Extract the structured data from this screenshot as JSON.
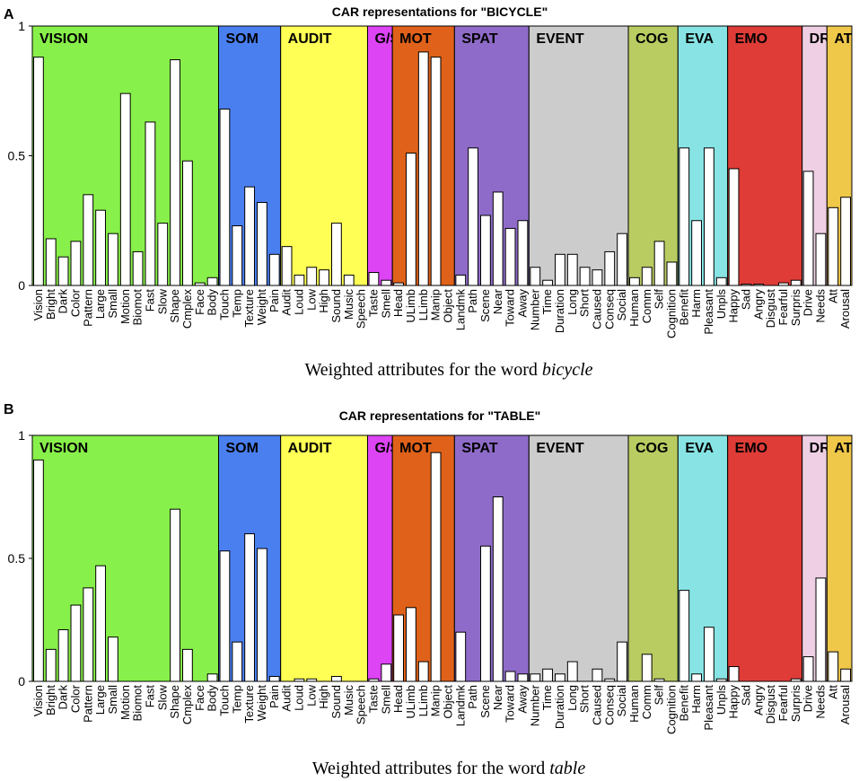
{
  "panel_letters": [
    "A",
    "B"
  ],
  "colors": {
    "VISION": "#88f04a",
    "SOM": "#4a7ff0",
    "AUDIT": "#ffff55",
    "G/S": "#dd44f4",
    "MOT": "#e0621a",
    "SPAT": "#8f6bc9",
    "EVENT": "#cccccc",
    "COG": "#b9cc62",
    "EVA": "#88e4e4",
    "EMO": "#df3c37",
    "DR": "#efcfe3",
    "AT": "#efc84a",
    "bar": "#ffffff"
  },
  "chart_data": [
    {
      "type": "bar",
      "title": "CAR representations for \"BICYCLE\"",
      "xlabel_prefix": "Weighted attributes for the word ",
      "xlabel_word": "bicycle",
      "ylabel": "",
      "ylim": [
        0,
        1
      ],
      "yticks": [
        "0",
        "0.5",
        "1"
      ],
      "domains": [
        {
          "label": "VISION",
          "count": 15
        },
        {
          "label": "SOM",
          "count": 5
        },
        {
          "label": "AUDIT",
          "count": 7
        },
        {
          "label": "G/S",
          "count": 2
        },
        {
          "label": "MOT",
          "count": 5
        },
        {
          "label": "SPAT",
          "count": 6
        },
        {
          "label": "EVENT",
          "count": 8
        },
        {
          "label": "COG",
          "count": 4
        },
        {
          "label": "EVA",
          "count": 4
        },
        {
          "label": "EMO",
          "count": 6
        },
        {
          "label": "DR",
          "count": 2
        },
        {
          "label": "AT",
          "count": 2
        }
      ],
      "categories": [
        "Vision",
        "Bright",
        "Dark",
        "Color",
        "Pattern",
        "Large",
        "Small",
        "Motion",
        "Biomot",
        "Fast",
        "Slow",
        "Shape",
        "Cmplex",
        "Face",
        "Body",
        "Touch",
        "Temp",
        "Texture",
        "Weight",
        "Pain",
        "Audit",
        "Loud",
        "Low",
        "High",
        "Sound",
        "Music",
        "Speech",
        "Taste",
        "Smell",
        "Head",
        "ULimb",
        "LLimb",
        "Manip",
        "Object",
        "Landmk",
        "Path",
        "Scene",
        "Near",
        "Toward",
        "Away",
        "Number",
        "Time",
        "Duration",
        "Long",
        "Short",
        "Caused",
        "Conseq",
        "Social",
        "Human",
        "Comm",
        "Self",
        "Cognition",
        "Benefit",
        "Harm",
        "Pleasant",
        "Unpls",
        "Happy",
        "Sad",
        "Angry",
        "Disgust",
        "Fearful",
        "Surpris",
        "Drive",
        "Needs",
        "Att",
        "Arousal"
      ],
      "values": [
        0.88,
        0.18,
        0.11,
        0.17,
        0.35,
        0.29,
        0.2,
        0.74,
        0.13,
        0.63,
        0.24,
        0.87,
        0.48,
        0.01,
        0.03,
        0.68,
        0.23,
        0.38,
        0.32,
        0.12,
        0.15,
        0.04,
        0.07,
        0.06,
        0.24,
        0.04,
        0.0,
        0.05,
        0.02,
        0.01,
        0.51,
        0.9,
        0.88,
        0.0,
        0.04,
        0.53,
        0.27,
        0.36,
        0.22,
        0.25,
        0.07,
        0.02,
        0.12,
        0.12,
        0.07,
        0.06,
        0.13,
        0.2,
        0.03,
        0.07,
        0.17,
        0.09,
        0.53,
        0.25,
        0.53,
        0.03,
        0.45,
        0.005,
        0.005,
        0.0,
        0.01,
        0.02,
        0.44,
        0.2,
        0.3,
        0.34
      ]
    },
    {
      "type": "bar",
      "title": "CAR representations for \"TABLE\"",
      "xlabel_prefix": "Weighted attributes for the word ",
      "xlabel_word": "table",
      "ylabel": "",
      "ylim": [
        0,
        1
      ],
      "yticks": [
        "0",
        "0.5",
        "1"
      ],
      "domains": [
        {
          "label": "VISION",
          "count": 15
        },
        {
          "label": "SOM",
          "count": 5
        },
        {
          "label": "AUDIT",
          "count": 7
        },
        {
          "label": "G/S",
          "count": 2
        },
        {
          "label": "MOT",
          "count": 5
        },
        {
          "label": "SPAT",
          "count": 6
        },
        {
          "label": "EVENT",
          "count": 8
        },
        {
          "label": "COG",
          "count": 4
        },
        {
          "label": "EVA",
          "count": 4
        },
        {
          "label": "EMO",
          "count": 6
        },
        {
          "label": "DR",
          "count": 2
        },
        {
          "label": "AT",
          "count": 2
        }
      ],
      "categories": [
        "Vision",
        "Bright",
        "Dark",
        "Color",
        "Pattern",
        "Large",
        "Small",
        "Motion",
        "Biomot",
        "Fast",
        "Slow",
        "Shape",
        "Cmplex",
        "Face",
        "Body",
        "Touch",
        "Temp",
        "Texture",
        "Weight",
        "Pain",
        "Audit",
        "Loud",
        "Low",
        "High",
        "Sound",
        "Music",
        "Speech",
        "Taste",
        "Smell",
        "Head",
        "ULimb",
        "LLimb",
        "Manip",
        "Object",
        "Landmk",
        "Path",
        "Scene",
        "Near",
        "Toward",
        "Away",
        "Number",
        "Time",
        "Duration",
        "Long",
        "Short",
        "Caused",
        "Conseq",
        "Social",
        "Human",
        "Comm",
        "Self",
        "Cognition",
        "Benefit",
        "Harm",
        "Pleasant",
        "Unpls",
        "Happy",
        "Sad",
        "Angry",
        "Disgust",
        "Fearful",
        "Surpris",
        "Drive",
        "Needs",
        "Att",
        "Arousal"
      ],
      "values": [
        0.9,
        0.13,
        0.21,
        0.31,
        0.38,
        0.47,
        0.18,
        0.0,
        0.0,
        0.0,
        0.0,
        0.7,
        0.13,
        0.0,
        0.03,
        0.53,
        0.16,
        0.6,
        0.54,
        0.02,
        0.0,
        0.01,
        0.01,
        0.0,
        0.02,
        0.0,
        0.0,
        0.01,
        0.07,
        0.27,
        0.3,
        0.08,
        0.93,
        0.0,
        0.2,
        0.0,
        0.55,
        0.75,
        0.04,
        0.03,
        0.03,
        0.05,
        0.03,
        0.08,
        0.0,
        0.05,
        0.01,
        0.16,
        0.0,
        0.11,
        0.01,
        0.0,
        0.37,
        0.03,
        0.22,
        0.01,
        0.06,
        0.0,
        0.0,
        0.0,
        0.0,
        0.01,
        0.1,
        0.42,
        0.12,
        0.05
      ]
    }
  ]
}
